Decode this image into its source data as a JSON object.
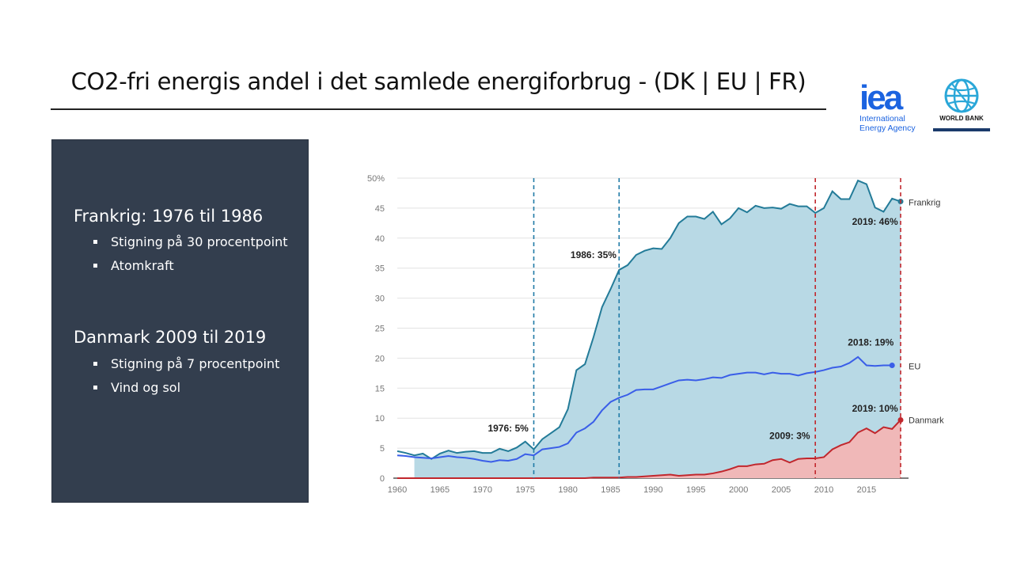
{
  "slide": {
    "title": "CO2-fri energis andel i det samlede energiforbrug - (DK | EU | FR)"
  },
  "logos": {
    "iea_mark": "iea",
    "iea_line1": "International",
    "iea_line2": "Energy Agency",
    "worldbank": "WORLD BANK"
  },
  "sidebar": {
    "france_heading": "Frankrig: 1976 til 1986",
    "france_points": [
      "Stigning på 30 procentpoint",
      "Atomkraft"
    ],
    "denmark_heading": "Danmark 2009 til 2019",
    "denmark_points": [
      "Stigning på 7 procentpoint",
      "Vind og sol"
    ]
  },
  "colors": {
    "france": "#237b98",
    "france_fill": "#b8d9e5",
    "eu": "#3a5ee8",
    "denmark": "#c1272d",
    "denmark_fill": "#f0b8b8",
    "panel": "#333e4e"
  },
  "chart_data": {
    "type": "area",
    "title": "",
    "xlabel": "",
    "ylabel": "",
    "ylim": [
      0,
      50
    ],
    "xlim": [
      1960,
      2019
    ],
    "y_ticks": [
      0,
      5,
      10,
      15,
      20,
      25,
      30,
      35,
      40,
      45,
      50
    ],
    "y_tick_labels": [
      "0",
      "5",
      "10",
      "15",
      "20",
      "25",
      "30",
      "35",
      "40",
      "45",
      "50%"
    ],
    "x_ticks": [
      1960,
      1965,
      1970,
      1975,
      1980,
      1985,
      1990,
      1995,
      2000,
      2005,
      2010,
      2015
    ],
    "x": [
      1960,
      1961,
      1962,
      1963,
      1964,
      1965,
      1966,
      1967,
      1968,
      1969,
      1970,
      1971,
      1972,
      1973,
      1974,
      1975,
      1976,
      1977,
      1978,
      1979,
      1980,
      1981,
      1982,
      1983,
      1984,
      1985,
      1986,
      1987,
      1988,
      1989,
      1990,
      1991,
      1992,
      1993,
      1994,
      1995,
      1996,
      1997,
      1998,
      1999,
      2000,
      2001,
      2002,
      2003,
      2004,
      2005,
      2006,
      2007,
      2008,
      2009,
      2010,
      2011,
      2012,
      2013,
      2014,
      2015,
      2016,
      2017,
      2018,
      2019
    ],
    "series": [
      {
        "name": "Frankrig",
        "values": [
          4.5,
          4.2,
          3.8,
          4.1,
          3.2,
          4.1,
          4.6,
          4.2,
          4.4,
          4.5,
          4.2,
          4.2,
          4.9,
          4.5,
          5.1,
          6.1,
          4.8,
          6.5,
          7.5,
          8.5,
          11.5,
          18.0,
          19.0,
          23.5,
          28.5,
          31.5,
          34.7,
          35.5,
          37.2,
          37.9,
          38.3,
          38.2,
          40.0,
          42.5,
          43.6,
          43.6,
          43.2,
          44.4,
          42.3,
          43.3,
          45.0,
          44.3,
          45.4,
          45.0,
          45.1,
          44.9,
          45.7,
          45.3,
          45.3,
          44.2,
          45.0,
          47.8,
          46.5,
          46.5,
          49.6,
          49.0,
          45.1,
          44.4,
          46.6,
          46.1
        ]
      },
      {
        "name": "EU",
        "values": [
          3.8,
          3.7,
          3.5,
          3.4,
          3.3,
          3.5,
          3.7,
          3.5,
          3.4,
          3.2,
          2.9,
          2.7,
          3.0,
          2.9,
          3.2,
          4.0,
          3.8,
          4.8,
          5.0,
          5.2,
          5.8,
          7.6,
          8.3,
          9.4,
          11.3,
          12.7,
          13.4,
          13.9,
          14.7,
          14.8,
          14.8,
          15.3,
          15.8,
          16.3,
          16.4,
          16.3,
          16.5,
          16.8,
          16.7,
          17.2,
          17.4,
          17.6,
          17.6,
          17.3,
          17.6,
          17.4,
          17.4,
          17.1,
          17.5,
          17.7,
          18.0,
          18.4,
          18.6,
          19.2,
          20.2,
          18.8,
          18.7,
          18.8,
          18.8,
          18.7
        ]
      },
      {
        "name": "Danmark",
        "values": [
          0,
          0,
          0,
          0,
          0,
          0,
          0,
          0,
          0,
          0,
          0,
          0,
          0,
          0,
          0,
          0,
          0,
          0,
          0,
          0,
          0,
          0,
          0,
          0.1,
          0.1,
          0.1,
          0.1,
          0.2,
          0.2,
          0.3,
          0.4,
          0.5,
          0.6,
          0.4,
          0.5,
          0.6,
          0.6,
          0.8,
          1.1,
          1.5,
          2.0,
          2.0,
          2.3,
          2.4,
          3.0,
          3.2,
          2.6,
          3.2,
          3.3,
          3.3,
          3.5,
          4.8,
          5.5,
          6.0,
          7.6,
          8.3,
          7.5,
          8.5,
          8.2,
          9.7
        ]
      }
    ],
    "vertical_markers": [
      {
        "x": 1976,
        "color": "#1f7aa6"
      },
      {
        "x": 1986,
        "color": "#1f7aa6"
      },
      {
        "x": 2009,
        "color": "#c1272d"
      },
      {
        "x": 2019,
        "color": "#c1272d"
      }
    ],
    "annotations": [
      {
        "text": "1976: 5%",
        "x": 1973,
        "y": 7.8
      },
      {
        "text": "1986: 35%",
        "x": 1983,
        "y": 36.7
      },
      {
        "text": "2019: 46%",
        "x": 2016,
        "y": 42.2
      },
      {
        "text": "2018: 19%",
        "x": 2015.5,
        "y": 22.1
      },
      {
        "text": "2019: 10%",
        "x": 2016,
        "y": 11.1
      },
      {
        "text": "2009: 3%",
        "x": 2006,
        "y": 6.5
      }
    ],
    "end_labels": [
      "Frankrig",
      "EU",
      "Danmark"
    ]
  }
}
